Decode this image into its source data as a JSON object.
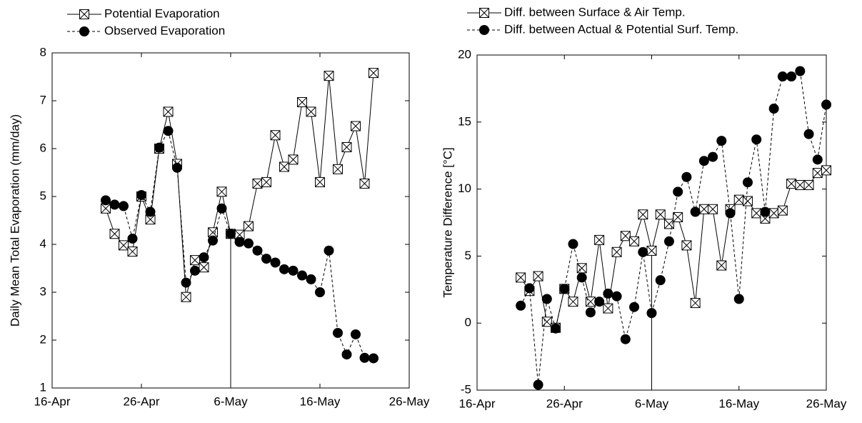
{
  "chart_data": [
    {
      "type": "line",
      "y_label": "Daily Mean Total Evaporation (mm/day)",
      "x": [
        "22-Apr",
        "23-Apr",
        "24-Apr",
        "25-Apr",
        "26-Apr",
        "27-Apr",
        "28-Apr",
        "29-Apr",
        "30-Apr",
        "1-May",
        "2-May",
        "3-May",
        "4-May",
        "5-May",
        "6-May",
        "7-May",
        "8-May",
        "9-May",
        "10-May",
        "11-May",
        "12-May",
        "13-May",
        "14-May",
        "15-May",
        "16-May",
        "17-May",
        "18-May",
        "19-May",
        "20-May",
        "21-May",
        "22-May"
      ],
      "series": [
        {
          "name": "Potential Evaporation",
          "color": "#000000",
          "line_style": "solid",
          "marker": "square-x",
          "values": [
            4.75,
            4.22,
            3.98,
            3.85,
            5.0,
            4.52,
            6.0,
            6.77,
            5.68,
            2.9,
            3.67,
            3.52,
            4.25,
            5.1,
            4.22,
            4.2,
            4.38,
            5.27,
            5.3,
            6.28,
            5.62,
            5.77,
            6.97,
            6.77,
            5.3,
            7.52,
            5.57,
            6.03,
            6.47,
            5.27,
            7.58
          ]
        },
        {
          "name": "Observed Evaporation",
          "color": "#000000",
          "line_style": "dashed",
          "marker": "circle",
          "values": [
            4.92,
            4.83,
            4.8,
            4.12,
            5.03,
            4.68,
            6.02,
            6.37,
            5.6,
            3.2,
            3.45,
            3.73,
            4.08,
            4.75,
            4.22,
            4.05,
            4.02,
            3.87,
            3.7,
            3.62,
            3.48,
            3.45,
            3.35,
            3.27,
            3.0,
            3.87,
            2.15,
            1.7,
            2.12,
            1.63,
            1.62
          ]
        }
      ],
      "xlim": [
        "16-Apr",
        "26-May"
      ],
      "xticks": [
        "16-Apr",
        "26-Apr",
        "6-May",
        "16-May",
        "26-May"
      ],
      "ylim": [
        1,
        8
      ],
      "yticks": [
        1,
        2,
        3,
        4,
        5,
        6,
        7,
        8
      ],
      "vline_x": "6-May"
    },
    {
      "type": "line",
      "y_label": "Temperature Difference [°C]",
      "x": [
        "21-Apr",
        "22-Apr",
        "23-Apr",
        "24-Apr",
        "25-Apr",
        "26-Apr",
        "27-Apr",
        "28-Apr",
        "29-Apr",
        "30-Apr",
        "1-May",
        "2-May",
        "3-May",
        "4-May",
        "5-May",
        "6-May",
        "7-May",
        "8-May",
        "9-May",
        "10-May",
        "11-May",
        "12-May",
        "13-May",
        "14-May",
        "15-May",
        "16-May",
        "17-May",
        "18-May",
        "19-May",
        "20-May",
        "21-May",
        "22-May",
        "23-May",
        "24-May",
        "25-May",
        "26-May"
      ],
      "series": [
        {
          "name": "Diff. between Surface & Air Temp.",
          "color": "#000000",
          "line_style": "solid",
          "marker": "square-x",
          "values": [
            3.4,
            2.4,
            3.5,
            0.1,
            -0.35,
            2.55,
            1.6,
            4.1,
            1.6,
            6.2,
            1.1,
            5.3,
            6.5,
            6.1,
            8.1,
            5.4,
            8.1,
            7.4,
            7.9,
            5.8,
            1.5,
            8.5,
            8.5,
            4.3,
            8.5,
            9.2,
            9.1,
            8.2,
            7.8,
            8.2,
            8.4,
            10.4,
            10.3,
            10.3,
            11.2,
            11.4
          ]
        },
        {
          "name": "Diff. between Actual & Potential Surf. Temp.",
          "color": "#000000",
          "line_style": "dashed",
          "marker": "circle",
          "values": [
            1.3,
            2.6,
            -4.6,
            1.8,
            -0.4,
            2.55,
            5.9,
            3.4,
            0.8,
            1.6,
            2.2,
            2.0,
            -1.2,
            1.2,
            5.3,
            0.75,
            3.2,
            6.1,
            9.8,
            10.9,
            8.3,
            12.1,
            12.4,
            13.6,
            8.2,
            1.8,
            10.5,
            13.7,
            8.3,
            16.0,
            18.4,
            18.4,
            18.8,
            14.1,
            12.2,
            16.3
          ]
        }
      ],
      "xlim": [
        "16-Apr",
        "26-May"
      ],
      "xticks": [
        "16-Apr",
        "26-Apr",
        "6-May",
        "16-May",
        "26-May"
      ],
      "ylim": [
        -5,
        20
      ],
      "yticks": [
        -5,
        0,
        5,
        10,
        15,
        20
      ],
      "vline_x": "6-May"
    }
  ]
}
